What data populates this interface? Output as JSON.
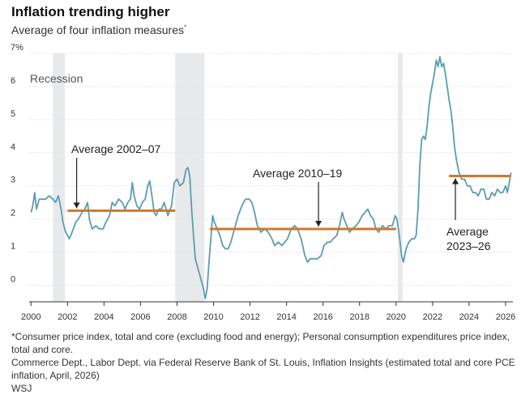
{
  "title": "Inflation trending higher",
  "subtitle": "Average of four inflation measures",
  "subtitle_marker": "*",
  "footnote": "*Consumer price index, total and core (excluding food and energy); Personal consumption expenditures price index, total and core.",
  "source": "Commerce Dept., Labor Dept. via Federal Reserve Bank of St. Louis, Inflation Insights (estimated total and core PCE inflation, April, 2026)",
  "credit": "WSJ",
  "colors": {
    "line": "#5b9db1",
    "average": "#cd7a2c",
    "recession": "#e8e9eb",
    "grid": "#e2e2e2",
    "axis": "#333333"
  },
  "chart_data": {
    "type": "line",
    "title": "Inflation trending higher",
    "subtitle": "Average of four inflation measures",
    "xlim": [
      1999.9,
      2026.4
    ],
    "ylim": [
      -0.5,
      7
    ],
    "y_ticks": [
      0,
      1,
      2,
      3,
      4,
      5,
      6,
      7
    ],
    "y_tick_labels": [
      "0",
      "1",
      "2",
      "3",
      "4",
      "5",
      "6",
      "7%"
    ],
    "x_ticks": [
      2000,
      2002,
      2004,
      2006,
      2008,
      2010,
      2012,
      2014,
      2016,
      2018,
      2020,
      2022,
      2024,
      2026
    ],
    "x_tick_labels": [
      "2000",
      "2002",
      "2004",
      "2006",
      "2008",
      "2010",
      "2012",
      "2014",
      "2016",
      "2018",
      "2020",
      "2022",
      "2024",
      "2026"
    ],
    "grid": "horizontal",
    "recession_label": "Recession",
    "recessions": [
      [
        2001.2,
        2001.85
      ],
      [
        2007.9,
        2009.5
      ],
      [
        2020.1,
        2020.35
      ]
    ],
    "averages": [
      {
        "label": "Average 2002–07",
        "start": 2002.0,
        "end": 2007.9,
        "value": 2.25
      },
      {
        "label": "Average 2010–19",
        "start": 2009.8,
        "end": 2020.0,
        "value": 1.7
      },
      {
        "label": "Average 2023–26",
        "start": 2022.9,
        "end": 2026.3,
        "value": 3.3
      }
    ],
    "series": [
      {
        "points": [
          [
            2000.0,
            2.2
          ],
          [
            2000.1,
            2.4
          ],
          [
            2000.2,
            2.8
          ],
          [
            2000.3,
            2.3
          ],
          [
            2000.45,
            2.6
          ],
          [
            2000.6,
            2.6
          ],
          [
            2000.8,
            2.6
          ],
          [
            2001.0,
            2.7
          ],
          [
            2001.2,
            2.6
          ],
          [
            2001.35,
            2.5
          ],
          [
            2001.5,
            2.7
          ],
          [
            2001.65,
            2.3
          ],
          [
            2001.75,
            1.9
          ],
          [
            2001.9,
            1.6
          ],
          [
            2002.0,
            1.5
          ],
          [
            2002.1,
            1.4
          ],
          [
            2002.25,
            1.6
          ],
          [
            2002.45,
            1.9
          ],
          [
            2002.6,
            2.0
          ],
          [
            2002.8,
            2.2
          ],
          [
            2002.95,
            2.3
          ],
          [
            2003.1,
            2.5
          ],
          [
            2003.2,
            2.0
          ],
          [
            2003.35,
            1.7
          ],
          [
            2003.55,
            1.8
          ],
          [
            2003.75,
            1.7
          ],
          [
            2003.95,
            1.7
          ],
          [
            2004.1,
            1.9
          ],
          [
            2004.3,
            2.1
          ],
          [
            2004.45,
            2.5
          ],
          [
            2004.6,
            2.4
          ],
          [
            2004.8,
            2.6
          ],
          [
            2005.0,
            2.5
          ],
          [
            2005.15,
            2.3
          ],
          [
            2005.3,
            2.5
          ],
          [
            2005.45,
            2.6
          ],
          [
            2005.55,
            3.1
          ],
          [
            2005.65,
            2.7
          ],
          [
            2005.8,
            2.4
          ],
          [
            2005.95,
            2.3
          ],
          [
            2006.1,
            2.5
          ],
          [
            2006.25,
            2.6
          ],
          [
            2006.4,
            3.0
          ],
          [
            2006.5,
            3.15
          ],
          [
            2006.6,
            2.8
          ],
          [
            2006.75,
            2.2
          ],
          [
            2006.85,
            2.1
          ],
          [
            2007.0,
            2.3
          ],
          [
            2007.15,
            2.3
          ],
          [
            2007.3,
            2.5
          ],
          [
            2007.5,
            2.1
          ],
          [
            2007.7,
            2.4
          ],
          [
            2007.85,
            3.1
          ],
          [
            2008.0,
            3.2
          ],
          [
            2008.15,
            3.0
          ],
          [
            2008.35,
            3.1
          ],
          [
            2008.5,
            3.5
          ],
          [
            2008.6,
            3.55
          ],
          [
            2008.7,
            3.3
          ],
          [
            2008.8,
            2.3
          ],
          [
            2008.9,
            1.5
          ],
          [
            2009.0,
            0.8
          ],
          [
            2009.15,
            0.5
          ],
          [
            2009.3,
            0.2
          ],
          [
            2009.45,
            -0.1
          ],
          [
            2009.55,
            -0.4
          ],
          [
            2009.65,
            -0.1
          ],
          [
            2009.75,
            0.7
          ],
          [
            2009.85,
            1.4
          ],
          [
            2009.95,
            2.1
          ],
          [
            2010.05,
            1.9
          ],
          [
            2010.2,
            1.7
          ],
          [
            2010.35,
            1.5
          ],
          [
            2010.5,
            1.2
          ],
          [
            2010.65,
            1.1
          ],
          [
            2010.8,
            1.1
          ],
          [
            2010.95,
            1.3
          ],
          [
            2011.15,
            1.7
          ],
          [
            2011.35,
            2.1
          ],
          [
            2011.55,
            2.4
          ],
          [
            2011.75,
            2.6
          ],
          [
            2011.95,
            2.6
          ],
          [
            2012.1,
            2.5
          ],
          [
            2012.25,
            2.2
          ],
          [
            2012.4,
            1.8
          ],
          [
            2012.6,
            1.6
          ],
          [
            2012.8,
            1.7
          ],
          [
            2013.0,
            1.6
          ],
          [
            2013.2,
            1.4
          ],
          [
            2013.35,
            1.2
          ],
          [
            2013.55,
            1.3
          ],
          [
            2013.75,
            1.2
          ],
          [
            2013.9,
            1.3
          ],
          [
            2014.05,
            1.4
          ],
          [
            2014.25,
            1.7
          ],
          [
            2014.45,
            1.8
          ],
          [
            2014.6,
            1.7
          ],
          [
            2014.8,
            1.4
          ],
          [
            2015.0,
            0.9
          ],
          [
            2015.15,
            0.7
          ],
          [
            2015.3,
            0.8
          ],
          [
            2015.5,
            0.8
          ],
          [
            2015.7,
            0.8
          ],
          [
            2015.9,
            0.9
          ],
          [
            2016.05,
            1.2
          ],
          [
            2016.25,
            1.3
          ],
          [
            2016.4,
            1.3
          ],
          [
            2016.55,
            1.4
          ],
          [
            2016.75,
            1.5
          ],
          [
            2016.9,
            1.8
          ],
          [
            2017.05,
            2.2
          ],
          [
            2017.15,
            2.0
          ],
          [
            2017.3,
            1.8
          ],
          [
            2017.45,
            1.6
          ],
          [
            2017.6,
            1.7
          ],
          [
            2017.8,
            1.8
          ],
          [
            2017.95,
            1.9
          ],
          [
            2018.15,
            2.1
          ],
          [
            2018.3,
            2.2
          ],
          [
            2018.45,
            2.3
          ],
          [
            2018.6,
            2.1
          ],
          [
            2018.75,
            2.0
          ],
          [
            2018.9,
            1.7
          ],
          [
            2019.05,
            1.6
          ],
          [
            2019.25,
            1.8
          ],
          [
            2019.45,
            1.7
          ],
          [
            2019.6,
            1.8
          ],
          [
            2019.8,
            1.8
          ],
          [
            2019.95,
            2.1
          ],
          [
            2020.05,
            2.0
          ],
          [
            2020.2,
            1.4
          ],
          [
            2020.3,
            0.9
          ],
          [
            2020.4,
            0.7
          ],
          [
            2020.55,
            1.1
          ],
          [
            2020.7,
            1.3
          ],
          [
            2020.85,
            1.4
          ],
          [
            2021.0,
            1.4
          ],
          [
            2021.1,
            1.5
          ],
          [
            2021.2,
            2.3
          ],
          [
            2021.3,
            3.6
          ],
          [
            2021.4,
            4.4
          ],
          [
            2021.5,
            4.5
          ],
          [
            2021.6,
            4.4
          ],
          [
            2021.7,
            4.8
          ],
          [
            2021.8,
            5.4
          ],
          [
            2021.9,
            5.8
          ],
          [
            2022.0,
            6.1
          ],
          [
            2022.1,
            6.4
          ],
          [
            2022.2,
            6.8
          ],
          [
            2022.3,
            6.6
          ],
          [
            2022.4,
            6.9
          ],
          [
            2022.5,
            6.6
          ],
          [
            2022.6,
            6.7
          ],
          [
            2022.7,
            6.4
          ],
          [
            2022.8,
            6.0
          ],
          [
            2022.9,
            5.6
          ],
          [
            2023.0,
            5.3
          ],
          [
            2023.1,
            4.8
          ],
          [
            2023.2,
            4.2
          ],
          [
            2023.3,
            3.8
          ],
          [
            2023.45,
            3.4
          ],
          [
            2023.6,
            3.2
          ],
          [
            2023.75,
            3.2
          ],
          [
            2023.9,
            3.0
          ],
          [
            2024.05,
            3.0
          ],
          [
            2024.2,
            2.8
          ],
          [
            2024.35,
            2.8
          ],
          [
            2024.5,
            2.7
          ],
          [
            2024.65,
            2.9
          ],
          [
            2024.8,
            2.9
          ],
          [
            2024.95,
            2.6
          ],
          [
            2025.1,
            2.6
          ],
          [
            2025.25,
            2.8
          ],
          [
            2025.4,
            2.7
          ],
          [
            2025.55,
            2.9
          ],
          [
            2025.7,
            2.8
          ],
          [
            2025.85,
            2.8
          ],
          [
            2026.0,
            3.0
          ],
          [
            2026.1,
            2.8
          ],
          [
            2026.2,
            3.1
          ],
          [
            2026.3,
            3.4
          ]
        ]
      }
    ]
  }
}
